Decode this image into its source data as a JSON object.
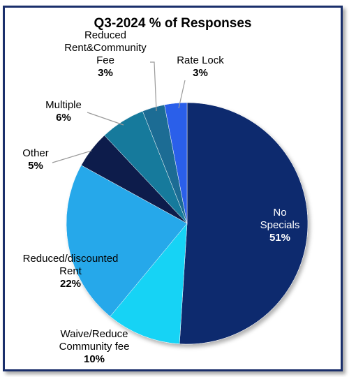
{
  "chart_data": {
    "type": "pie",
    "title": "Q3-2024 % of Responses",
    "slices": [
      {
        "name": "No Specials",
        "label_lines": [
          "No",
          "Specials"
        ],
        "value": 51,
        "value_label": "51%",
        "color": "#0f2a6e",
        "label_color": "#ffffff"
      },
      {
        "name": "Waive/Reduce Community fee",
        "label_lines": [
          "Waive/Reduce",
          "Community fee"
        ],
        "value": 10,
        "value_label": "10%",
        "color": "#15d3f5",
        "label_color": "#000000"
      },
      {
        "name": "Reduced/discounted Rent",
        "label_lines": [
          "Reduced/discounted",
          "Rent"
        ],
        "value": 22,
        "value_label": "22%",
        "color": "#25a8ea",
        "label_color": "#000000"
      },
      {
        "name": "Other",
        "label_lines": [
          "Other"
        ],
        "value": 5,
        "value_label": "5%",
        "color": "#0c1c4c",
        "label_color": "#000000"
      },
      {
        "name": "Multiple",
        "label_lines": [
          "Multiple"
        ],
        "value": 6,
        "value_label": "6%",
        "color": "#127a9c",
        "label_color": "#000000"
      },
      {
        "name": "Reduced Rent&Community Fee",
        "label_lines": [
          "Reduced",
          "Rent&Community",
          "Fee"
        ],
        "value": 3,
        "value_label": "3%",
        "color": "#1a6c94",
        "label_color": "#000000"
      },
      {
        "name": "Rate Lock",
        "label_lines": [
          "Rate Lock"
        ],
        "value": 3,
        "value_label": "3%",
        "color": "#2a5fea",
        "label_color": "#000000"
      }
    ]
  }
}
